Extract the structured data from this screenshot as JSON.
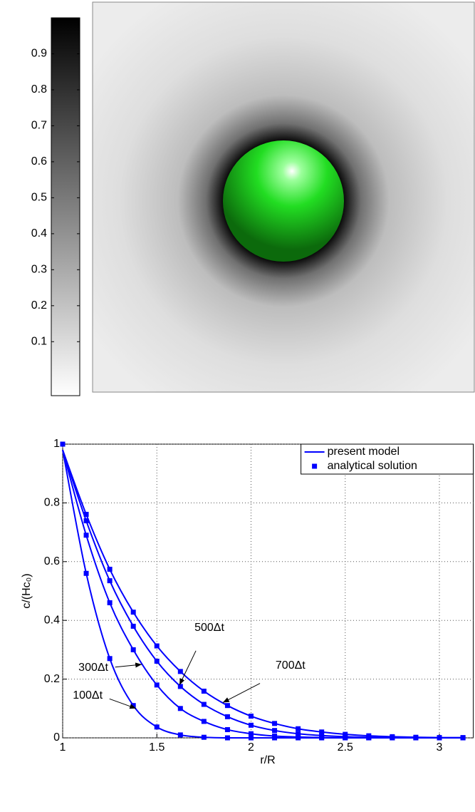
{
  "chart_data": [
    {
      "type": "image",
      "ylim": [
        -0.05,
        1
      ],
      "yticks": [
        0.1,
        0.2,
        0.3,
        0.4,
        0.5,
        0.6,
        0.7,
        0.8,
        0.9
      ]
    },
    {
      "type": "line",
      "xlabel": "r/R",
      "ylabel": "c/(Hc₀)",
      "x": [
        1,
        1.125,
        1.25,
        1.375,
        1.5,
        1.625,
        1.75,
        1.875,
        2,
        2.125,
        2.25,
        2.375,
        2.5,
        2.625,
        2.75,
        2.875,
        3,
        3.125
      ],
      "xlim": [
        1,
        3.18
      ],
      "ylim": [
        0,
        1
      ],
      "xticks": [
        1,
        1.5,
        2,
        2.5,
        3
      ],
      "yticks": [
        0,
        0.2,
        0.4,
        0.6,
        0.8,
        1
      ],
      "grid": true,
      "legend": "upper right",
      "series": [
        {
          "name": "present model",
          "kind": "line",
          "color": "#0000ff",
          "curves": [
            [
              0.98,
              0.56,
              0.27,
              0.11,
              0.037,
              0.01,
              0.002,
              0,
              0,
              0,
              0,
              0,
              0,
              0,
              0,
              0,
              0,
              0
            ],
            [
              0.98,
              0.69,
              0.46,
              0.3,
              0.18,
              0.1,
              0.056,
              0.028,
              0.014,
              0.006,
              0.003,
              0.001,
              0,
              0,
              0,
              0,
              0,
              0
            ],
            [
              0.98,
              0.739,
              0.535,
              0.38,
              0.261,
              0.175,
              0.114,
              0.072,
              0.043,
              0.025,
              0.014,
              0.008,
              0.004,
              0.002,
              0.001,
              0,
              0,
              0
            ],
            [
              0.98,
              0.761,
              0.574,
              0.428,
              0.313,
              0.226,
              0.159,
              0.11,
              0.074,
              0.049,
              0.031,
              0.02,
              0.012,
              0.007,
              0.004,
              0.002,
              0.001,
              0.001
            ]
          ]
        },
        {
          "name": "analytical solution",
          "kind": "marker",
          "color": "#0000ff",
          "curves": [
            [
              1,
              0.56,
              0.27,
              0.11,
              0.037,
              0.01,
              0.002,
              0,
              0,
              0,
              0,
              0,
              0,
              0,
              0,
              0,
              0,
              0
            ],
            [
              1,
              0.69,
              0.46,
              0.3,
              0.18,
              0.1,
              0.056,
              0.028,
              0.014,
              0.006,
              0.003,
              0.001,
              0,
              0,
              0,
              0,
              0,
              0
            ],
            [
              1,
              0.739,
              0.535,
              0.38,
              0.261,
              0.175,
              0.114,
              0.072,
              0.043,
              0.025,
              0.014,
              0.008,
              0.004,
              0.002,
              0.001,
              0,
              0,
              0
            ],
            [
              1,
              0.761,
              0.574,
              0.428,
              0.313,
              0.226,
              0.159,
              0.11,
              0.074,
              0.049,
              0.031,
              0.02,
              0.012,
              0.007,
              0.004,
              0.002,
              0.001,
              0.001
            ]
          ]
        }
      ],
      "annotations": [
        {
          "text": "100Δt",
          "x": 1.39,
          "y": 0.1
        },
        {
          "text": "300Δt",
          "x": 1.42,
          "y": 0.25
        },
        {
          "text": "500Δt",
          "x": 1.62,
          "y": 0.18
        },
        {
          "text": "700Δt",
          "x": 1.85,
          "y": 0.12
        }
      ]
    }
  ]
}
